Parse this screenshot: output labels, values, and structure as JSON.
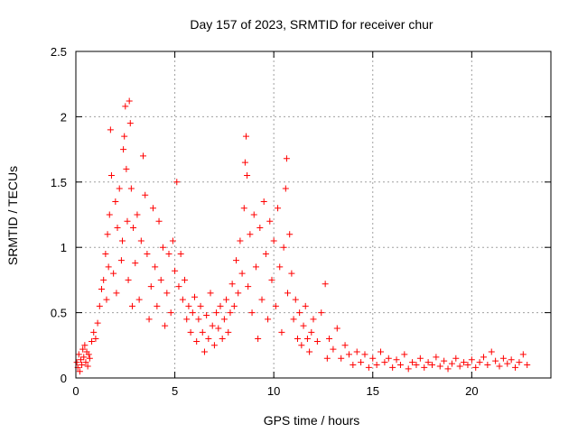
{
  "chart_data": {
    "type": "scatter",
    "title": "Day 157 of 2023, SRMTID for receiver chur",
    "xlabel": "GPS time / hours",
    "ylabel": "SRMTID / TECUs",
    "xlim": [
      0,
      24
    ],
    "ylim": [
      0,
      2.5
    ],
    "xticks": [
      0,
      5,
      10,
      15,
      20
    ],
    "yticks": [
      0,
      0.5,
      1,
      1.5,
      2,
      2.5
    ],
    "xtick_labels": [
      "0",
      "5",
      "10",
      "15",
      "20"
    ],
    "ytick_labels": [
      "0",
      "0.5",
      "1",
      "1.5",
      "2",
      "2.5"
    ],
    "grid": true,
    "marker": "+",
    "color": "#ff0000",
    "series": [
      {
        "name": "SRMTID",
        "points": [
          [
            0.05,
            0.12
          ],
          [
            0.1,
            0.08
          ],
          [
            0.15,
            0.18
          ],
          [
            0.2,
            0.05
          ],
          [
            0.25,
            0.14
          ],
          [
            0.3,
            0.1
          ],
          [
            0.35,
            0.22
          ],
          [
            0.4,
            0.16
          ],
          [
            0.45,
            0.25
          ],
          [
            0.5,
            0.12
          ],
          [
            0.55,
            0.2
          ],
          [
            0.6,
            0.09
          ],
          [
            0.65,
            0.18
          ],
          [
            0.7,
            0.15
          ],
          [
            0.8,
            0.28
          ],
          [
            0.9,
            0.35
          ],
          [
            1.0,
            0.3
          ],
          [
            1.1,
            0.42
          ],
          [
            1.2,
            0.55
          ],
          [
            1.3,
            0.68
          ],
          [
            1.4,
            0.75
          ],
          [
            1.5,
            0.95
          ],
          [
            1.55,
            0.6
          ],
          [
            1.6,
            1.1
          ],
          [
            1.65,
            0.85
          ],
          [
            1.7,
            1.25
          ],
          [
            1.75,
            1.9
          ],
          [
            1.8,
            1.55
          ],
          [
            1.9,
            0.8
          ],
          [
            2.0,
            1.35
          ],
          [
            2.05,
            0.65
          ],
          [
            2.1,
            1.15
          ],
          [
            2.2,
            1.45
          ],
          [
            2.3,
            0.9
          ],
          [
            2.35,
            1.05
          ],
          [
            2.4,
            1.75
          ],
          [
            2.45,
            1.85
          ],
          [
            2.5,
            2.08
          ],
          [
            2.55,
            1.6
          ],
          [
            2.6,
            1.2
          ],
          [
            2.65,
            0.75
          ],
          [
            2.7,
            2.12
          ],
          [
            2.75,
            1.95
          ],
          [
            2.8,
            1.45
          ],
          [
            2.85,
            0.55
          ],
          [
            2.9,
            1.15
          ],
          [
            3.0,
            0.88
          ],
          [
            3.1,
            1.25
          ],
          [
            3.2,
            0.6
          ],
          [
            3.3,
            1.05
          ],
          [
            3.4,
            1.7
          ],
          [
            3.5,
            1.4
          ],
          [
            3.6,
            0.95
          ],
          [
            3.7,
            0.45
          ],
          [
            3.8,
            0.7
          ],
          [
            3.9,
            1.3
          ],
          [
            4.0,
            0.85
          ],
          [
            4.1,
            0.55
          ],
          [
            4.2,
            1.2
          ],
          [
            4.3,
            0.75
          ],
          [
            4.4,
            1.0
          ],
          [
            4.5,
            0.4
          ],
          [
            4.6,
            0.65
          ],
          [
            4.7,
            0.95
          ],
          [
            4.8,
            0.5
          ],
          [
            4.9,
            1.05
          ],
          [
            5.0,
            0.82
          ],
          [
            5.1,
            1.5
          ],
          [
            5.2,
            0.7
          ],
          [
            5.3,
            0.95
          ],
          [
            5.4,
            0.6
          ],
          [
            5.5,
            0.75
          ],
          [
            5.6,
            0.45
          ],
          [
            5.7,
            0.55
          ],
          [
            5.8,
            0.35
          ],
          [
            5.9,
            0.5
          ],
          [
            6.0,
            0.62
          ],
          [
            6.1,
            0.28
          ],
          [
            6.2,
            0.45
          ],
          [
            6.3,
            0.55
          ],
          [
            6.4,
            0.35
          ],
          [
            6.5,
            0.2
          ],
          [
            6.6,
            0.48
          ],
          [
            6.7,
            0.3
          ],
          [
            6.8,
            0.65
          ],
          [
            6.9,
            0.4
          ],
          [
            7.0,
            0.25
          ],
          [
            7.1,
            0.5
          ],
          [
            7.2,
            0.38
          ],
          [
            7.3,
            0.55
          ],
          [
            7.4,
            0.3
          ],
          [
            7.5,
            0.45
          ],
          [
            7.6,
            0.6
          ],
          [
            7.7,
            0.35
          ],
          [
            7.8,
            0.5
          ],
          [
            7.9,
            0.72
          ],
          [
            8.0,
            0.55
          ],
          [
            8.1,
            0.9
          ],
          [
            8.2,
            0.65
          ],
          [
            8.3,
            1.05
          ],
          [
            8.4,
            0.8
          ],
          [
            8.5,
            1.3
          ],
          [
            8.55,
            1.65
          ],
          [
            8.6,
            1.85
          ],
          [
            8.65,
            1.55
          ],
          [
            8.7,
            0.7
          ],
          [
            8.8,
            1.1
          ],
          [
            8.9,
            0.5
          ],
          [
            9.0,
            1.25
          ],
          [
            9.1,
            0.85
          ],
          [
            9.2,
            0.3
          ],
          [
            9.3,
            1.15
          ],
          [
            9.4,
            0.6
          ],
          [
            9.5,
            1.35
          ],
          [
            9.6,
            0.95
          ],
          [
            9.7,
            0.45
          ],
          [
            9.8,
            1.2
          ],
          [
            9.9,
            0.75
          ],
          [
            10.0,
            1.05
          ],
          [
            10.1,
            0.55
          ],
          [
            10.2,
            1.3
          ],
          [
            10.3,
            0.85
          ],
          [
            10.4,
            0.35
          ],
          [
            10.5,
            1.0
          ],
          [
            10.6,
            1.45
          ],
          [
            10.65,
            1.68
          ],
          [
            10.7,
            0.65
          ],
          [
            10.8,
            1.1
          ],
          [
            10.9,
            0.8
          ],
          [
            11.0,
            0.45
          ],
          [
            11.1,
            0.6
          ],
          [
            11.2,
            0.3
          ],
          [
            11.3,
            0.5
          ],
          [
            11.4,
            0.25
          ],
          [
            11.5,
            0.4
          ],
          [
            11.6,
            0.55
          ],
          [
            11.7,
            0.3
          ],
          [
            11.8,
            0.2
          ],
          [
            11.9,
            0.35
          ],
          [
            12.0,
            0.45
          ],
          [
            12.2,
            0.28
          ],
          [
            12.4,
            0.5
          ],
          [
            12.6,
            0.72
          ],
          [
            12.7,
            0.15
          ],
          [
            12.8,
            0.3
          ],
          [
            13.0,
            0.22
          ],
          [
            13.2,
            0.38
          ],
          [
            13.4,
            0.15
          ],
          [
            13.6,
            0.25
          ],
          [
            13.8,
            0.18
          ],
          [
            14.0,
            0.1
          ],
          [
            14.2,
            0.2
          ],
          [
            14.4,
            0.12
          ],
          [
            14.6,
            0.18
          ],
          [
            14.8,
            0.08
          ],
          [
            15.0,
            0.15
          ],
          [
            15.2,
            0.1
          ],
          [
            15.4,
            0.2
          ],
          [
            15.6,
            0.12
          ],
          [
            15.8,
            0.15
          ],
          [
            16.0,
            0.08
          ],
          [
            16.2,
            0.14
          ],
          [
            16.4,
            0.1
          ],
          [
            16.6,
            0.18
          ],
          [
            16.8,
            0.07
          ],
          [
            17.0,
            0.12
          ],
          [
            17.2,
            0.1
          ],
          [
            17.4,
            0.15
          ],
          [
            17.6,
            0.08
          ],
          [
            17.8,
            0.12
          ],
          [
            18.0,
            0.1
          ],
          [
            18.2,
            0.16
          ],
          [
            18.4,
            0.09
          ],
          [
            18.6,
            0.13
          ],
          [
            18.8,
            0.07
          ],
          [
            19.0,
            0.11
          ],
          [
            19.2,
            0.15
          ],
          [
            19.4,
            0.09
          ],
          [
            19.6,
            0.12
          ],
          [
            19.8,
            0.1
          ],
          [
            20.0,
            0.14
          ],
          [
            20.2,
            0.08
          ],
          [
            20.4,
            0.12
          ],
          [
            20.6,
            0.16
          ],
          [
            20.8,
            0.1
          ],
          [
            21.0,
            0.2
          ],
          [
            21.2,
            0.13
          ],
          [
            21.4,
            0.09
          ],
          [
            21.6,
            0.15
          ],
          [
            21.8,
            0.11
          ],
          [
            22.0,
            0.14
          ],
          [
            22.2,
            0.08
          ],
          [
            22.4,
            0.12
          ],
          [
            22.6,
            0.18
          ],
          [
            22.8,
            0.1
          ]
        ]
      }
    ]
  }
}
